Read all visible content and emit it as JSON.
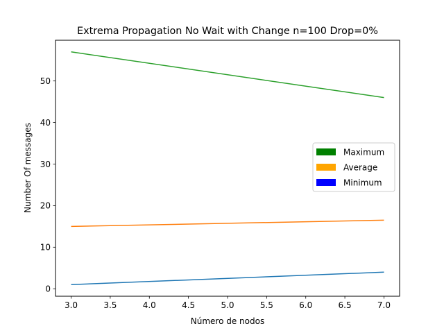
{
  "chart_data": {
    "type": "line",
    "title": "Extrema Propagation No Wait with Change n=100 Drop=0%",
    "xlabel": "Número de nodos",
    "ylabel": "Number Of messages",
    "xlim": [
      2.8,
      7.2
    ],
    "ylim": [
      -1.8,
      59.8
    ],
    "xticks": [
      3.0,
      3.5,
      4.0,
      4.5,
      5.0,
      5.5,
      6.0,
      6.5,
      7.0
    ],
    "xtick_labels": [
      "3.0",
      "3.5",
      "4.0",
      "4.5",
      "5.0",
      "5.5",
      "6.0",
      "6.5",
      "7.0"
    ],
    "yticks": [
      0,
      10,
      20,
      30,
      40,
      50
    ],
    "ytick_labels": [
      "0",
      "10",
      "20",
      "30",
      "40",
      "50"
    ],
    "grid": false,
    "series": [
      {
        "name": "line-blue",
        "color": "#1f77b4",
        "x": [
          3,
          7
        ],
        "y": [
          1,
          4
        ]
      },
      {
        "name": "line-orange",
        "color": "#ff7f0e",
        "x": [
          3,
          7
        ],
        "y": [
          15,
          16.5
        ]
      },
      {
        "name": "line-green",
        "color": "#2ca02c",
        "x": [
          3,
          7
        ],
        "y": [
          57,
          46
        ]
      }
    ],
    "legend": {
      "position": "center-right",
      "entries": [
        {
          "label": "Maximum",
          "color": "#008000"
        },
        {
          "label": "Average",
          "color": "#ffa500"
        },
        {
          "label": "Minimum",
          "color": "#0000ff"
        }
      ]
    }
  }
}
